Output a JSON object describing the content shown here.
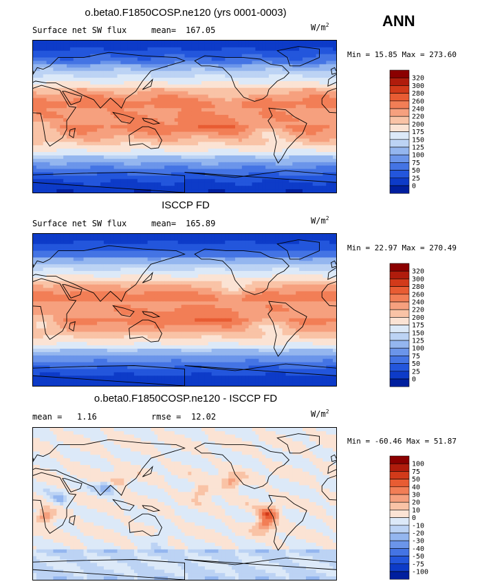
{
  "chart_data": [
    {
      "type": "heatmap",
      "title": "o.beta0.F1850COSP.ne120 (yrs 0001-0003)",
      "variable": "Surface net SW flux",
      "mean_label": "mean=",
      "mean_value": "167.05",
      "units_base": "W/m",
      "units_exp": "2",
      "min_label": "Min =",
      "min_value": "15.85",
      "max_label": "Max =",
      "max_value": "273.60",
      "colorbar_levels": [
        "320",
        "300",
        "280",
        "260",
        "240",
        "220",
        "200",
        "175",
        "150",
        "125",
        "100",
        "75",
        "50",
        "25",
        "0"
      ],
      "colorbar_colors": [
        "#8b0000",
        "#b01c0c",
        "#d23a1a",
        "#e85c33",
        "#f27e56",
        "#f6a07e",
        "#f9c3a6",
        "#fbe3d4",
        "#dce9f8",
        "#bcd3f4",
        "#94b6ef",
        "#6b95ea",
        "#4474e4",
        "#2356dc",
        "#0d3bc8",
        "#001f9e"
      ]
    },
    {
      "type": "heatmap",
      "title": "ISCCP FD",
      "variable": "Surface net SW flux",
      "mean_label": "mean=",
      "mean_value": "165.89",
      "units_base": "W/m",
      "units_exp": "2",
      "min_label": "Min =",
      "min_value": "22.97",
      "max_label": "Max =",
      "max_value": "270.49",
      "colorbar_levels": [
        "320",
        "300",
        "280",
        "260",
        "240",
        "220",
        "200",
        "175",
        "150",
        "125",
        "100",
        "75",
        "50",
        "25",
        "0"
      ],
      "colorbar_colors": [
        "#8b0000",
        "#b01c0c",
        "#d23a1a",
        "#e85c33",
        "#f27e56",
        "#f6a07e",
        "#f9c3a6",
        "#fbe3d4",
        "#dce9f8",
        "#bcd3f4",
        "#94b6ef",
        "#6b95ea",
        "#4474e4",
        "#2356dc",
        "#0d3bc8",
        "#001f9e"
      ]
    },
    {
      "type": "heatmap",
      "title": "o.beta0.F1850COSP.ne120 - ISCCP FD",
      "mean_label": "mean =",
      "mean_value": "1.16",
      "rmse_label": "rmse =",
      "rmse_value": "12.02",
      "units_base": "W/m",
      "units_exp": "2",
      "min_label": "Min =",
      "min_value": "-60.46",
      "max_label": "Max =",
      "max_value": "51.87",
      "colorbar_levels": [
        "100",
        "75",
        "50",
        "40",
        "30",
        "20",
        "10",
        "0",
        "-10",
        "-20",
        "-30",
        "-40",
        "-50",
        "-75",
        "-100"
      ],
      "colorbar_colors": [
        "#8b0000",
        "#b01c0c",
        "#d23a1a",
        "#e85c33",
        "#f27e56",
        "#f6a07e",
        "#f9c3a6",
        "#fbe3d4",
        "#dce9f8",
        "#bcd3f4",
        "#94b6ef",
        "#6b95ea",
        "#4474e4",
        "#2356dc",
        "#0d3bc8",
        "#001f9e"
      ]
    }
  ],
  "season_label": "ANN",
  "colors": {
    "coast": "#000000",
    "ice": "#ffffff"
  }
}
